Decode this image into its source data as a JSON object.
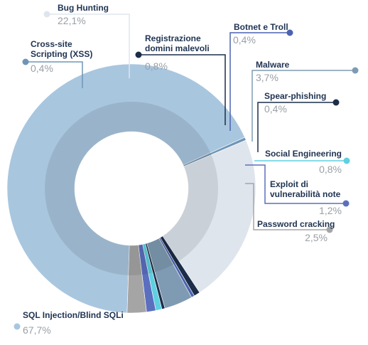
{
  "chart_data": {
    "type": "pie",
    "title": "",
    "unit": "%",
    "series": [
      {
        "label": "SQL Injection/Blind SQLi",
        "value": 67.7,
        "display": "67,7%",
        "color": "#a9c6df"
      },
      {
        "label": "Cross-site Scripting (XSS)",
        "value": 0.4,
        "display": "0,4%",
        "color": "#6f95b5"
      },
      {
        "label": "Bug Hunting",
        "value": 22.1,
        "display": "22,1%",
        "color": "#dfe5ed"
      },
      {
        "label": "Registrazione domini malevoli",
        "value": 0.8,
        "display": "0,8%",
        "color": "#1b2d47"
      },
      {
        "label": "Botnet e Troll",
        "value": 0.4,
        "display": "0,4%",
        "color": "#4c63b0"
      },
      {
        "label": "Malware",
        "value": 3.7,
        "display": "3,7%",
        "color": "#7f9bb3"
      },
      {
        "label": "Spear-phishing",
        "value": 0.4,
        "display": "0,4%",
        "color": "#1d2e4a"
      },
      {
        "label": "Social Engineering",
        "value": 0.8,
        "display": "0,8%",
        "color": "#5fd0e0"
      },
      {
        "label": "Exploit di vulnerabilità note",
        "value": 1.2,
        "display": "1,2%",
        "color": "#5b6fbf"
      },
      {
        "label": "Password cracking",
        "value": 2.5,
        "display": "2,5%",
        "color": "#a5a5a5"
      }
    ]
  }
}
